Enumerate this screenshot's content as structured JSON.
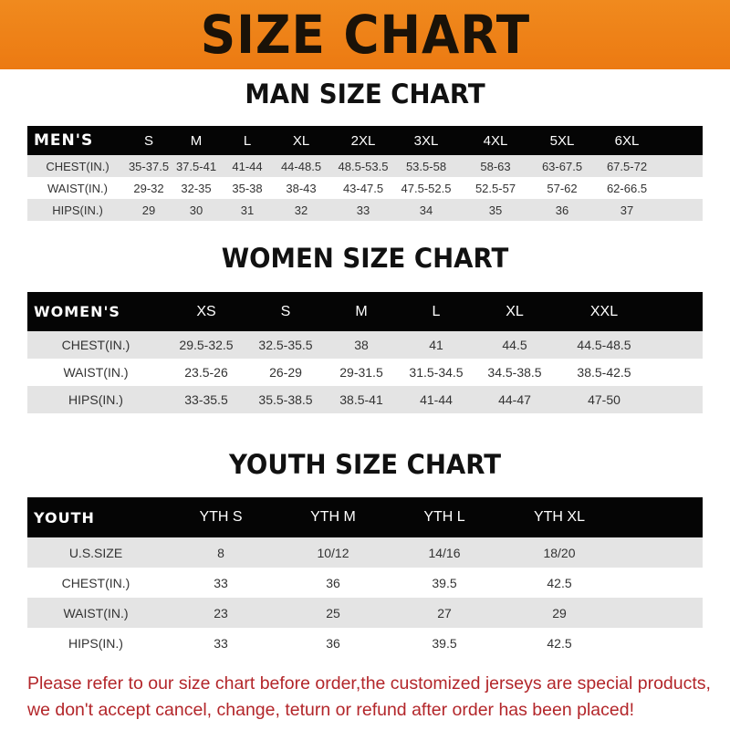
{
  "title": "SIZE CHART",
  "colors": {
    "banner": "#ee8218",
    "header_row": "#050505",
    "stripe": "#e4e4e4",
    "note": "#b3262a"
  },
  "men": {
    "title": "MAN SIZE CHART",
    "columns": [
      "MEN'S",
      "S",
      "M",
      "L",
      "XL",
      "2XL",
      "3XL",
      "4XL",
      "5XL",
      "6XL"
    ],
    "rows": [
      [
        "CHEST(IN.)",
        "35-37.5",
        "37.5-41",
        "41-44",
        "44-48.5",
        "48.5-53.5",
        "53.5-58",
        "58-63",
        "63-67.5",
        "67.5-72"
      ],
      [
        "WAIST(IN.)",
        "29-32",
        "32-35",
        "35-38",
        "38-43",
        "43-47.5",
        "47.5-52.5",
        "52.5-57",
        "57-62",
        "62-66.5"
      ],
      [
        "HIPS(IN.)",
        "29",
        "30",
        "31",
        "32",
        "33",
        "34",
        "35",
        "36",
        "37"
      ]
    ]
  },
  "women": {
    "title": "WOMEN SIZE CHART",
    "columns": [
      "WOMEN'S",
      "XS",
      "S",
      "M",
      "L",
      "XL",
      "XXL"
    ],
    "rows": [
      [
        "CHEST(IN.)",
        "29.5-32.5",
        "32.5-35.5",
        "38",
        "41",
        "44.5",
        "44.5-48.5"
      ],
      [
        "WAIST(IN.)",
        "23.5-26",
        "26-29",
        "29-31.5",
        "31.5-34.5",
        "34.5-38.5",
        "38.5-42.5"
      ],
      [
        "HIPS(IN.)",
        "33-35.5",
        "35.5-38.5",
        "38.5-41",
        "41-44",
        "44-47",
        "47-50"
      ]
    ]
  },
  "youth": {
    "title": "YOUTH SIZE CHART",
    "columns": [
      "YOUTH",
      "YTH S",
      "YTH M",
      "YTH L",
      "YTH XL"
    ],
    "rows": [
      [
        "U.S.SIZE",
        "8",
        "10/12",
        "14/16",
        "18/20"
      ],
      [
        "CHEST(IN.)",
        "33",
        "36",
        "39.5",
        "42.5"
      ],
      [
        "WAIST(IN.)",
        "23",
        "25",
        "27",
        "29"
      ],
      [
        "HIPS(IN.)",
        "33",
        "36",
        "39.5",
        "42.5"
      ]
    ]
  },
  "note": [
    "Please refer to our size chart before order,the customized jerseys are special products,",
    "we don't accept cancel, change, teturn or refund after order has been placed!"
  ]
}
